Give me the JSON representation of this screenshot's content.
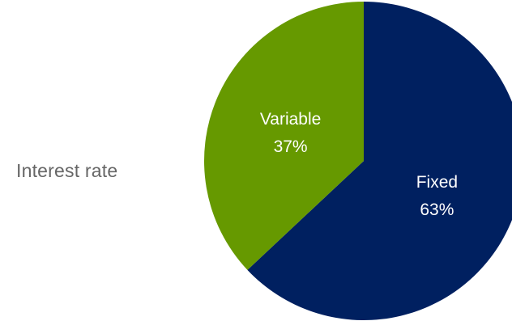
{
  "side_label": "Interest rate",
  "chart_data": {
    "type": "pie",
    "title": "",
    "slices": [
      {
        "label": "Fixed",
        "value": 63,
        "value_label": "63%",
        "color": "#002060"
      },
      {
        "label": "Variable",
        "value": 37,
        "value_label": "37%",
        "color": "#669900"
      }
    ],
    "start_angle_deg": 0,
    "direction": "clockwise",
    "legend": "none"
  }
}
